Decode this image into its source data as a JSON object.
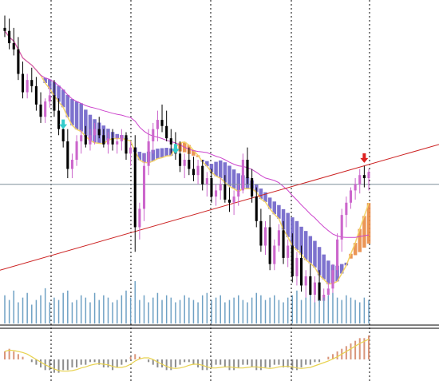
{
  "colors": {
    "background": "#ffffff",
    "grid": "#000000",
    "bull_candle": "#cc66cc",
    "bear_candle": "#000000",
    "cloud_bear": "#6f63c9",
    "cloud_bull": "#e98a44",
    "cloud_edge": "#f3d36a",
    "slow_ma": "#cc44cc",
    "trendline": "#cc2222",
    "hline": "#7f8f9a",
    "volume": "#6fa1c4",
    "osc_pos": "#d9957a",
    "osc_neg": "#8d8d8d",
    "osc_signal": "#e8d24f",
    "osc_green": "#6fbf3f",
    "arrow_cyan": "#33cccc",
    "arrow_red": "#dd2222"
  },
  "chart_data": [
    {
      "type": "candlestick",
      "title": "",
      "xlabel": "",
      "ylabel": "",
      "ylim": [
        0,
        100
      ],
      "grid": "vertical dashed",
      "legend": "none",
      "ohlc": [
        [
          93,
          97,
          90,
          92
        ],
        [
          92,
          96,
          86,
          88
        ],
        [
          88,
          93,
          84,
          86
        ],
        [
          86,
          90,
          76,
          78
        ],
        [
          78,
          82,
          70,
          72
        ],
        [
          72,
          78,
          70,
          76
        ],
        [
          76,
          80,
          72,
          74
        ],
        [
          74,
          77,
          66,
          68
        ],
        [
          68,
          72,
          62,
          64
        ],
        [
          64,
          70,
          62,
          69
        ],
        [
          69,
          74,
          67,
          71
        ],
        [
          71,
          76,
          64,
          66
        ],
        [
          66,
          70,
          58,
          60
        ],
        [
          60,
          63,
          54,
          56
        ],
        [
          56,
          60,
          44,
          47
        ],
        [
          47,
          52,
          44,
          50
        ],
        [
          50,
          58,
          48,
          56
        ],
        [
          56,
          60,
          52,
          58
        ],
        [
          58,
          61,
          54,
          55
        ],
        [
          55,
          60,
          53,
          58
        ],
        [
          58,
          62,
          55,
          60
        ],
        [
          60,
          64,
          57,
          58
        ],
        [
          58,
          60,
          54,
          55
        ],
        [
          55,
          59,
          52,
          57
        ],
        [
          57,
          60,
          53,
          55
        ],
        [
          55,
          58,
          52,
          56
        ],
        [
          56,
          60,
          53,
          58
        ],
        [
          58,
          59,
          50,
          52
        ],
        [
          52,
          56,
          48,
          54
        ],
        [
          54,
          58,
          20,
          28
        ],
        [
          28,
          36,
          24,
          34
        ],
        [
          34,
          52,
          30,
          48
        ],
        [
          48,
          60,
          45,
          56
        ],
        [
          56,
          62,
          52,
          60
        ],
        [
          60,
          66,
          56,
          63
        ],
        [
          63,
          68,
          59,
          61
        ],
        [
          61,
          66,
          56,
          57
        ],
        [
          57,
          60,
          52,
          55
        ],
        [
          55,
          59,
          50,
          52
        ],
        [
          52,
          56,
          46,
          48
        ],
        [
          48,
          52,
          44,
          50
        ],
        [
          50,
          54,
          45,
          47
        ],
        [
          47,
          51,
          43,
          45
        ],
        [
          45,
          50,
          42,
          48
        ],
        [
          48,
          50,
          40,
          42
        ],
        [
          42,
          46,
          38,
          44
        ],
        [
          44,
          47,
          36,
          38
        ],
        [
          38,
          42,
          35,
          40
        ],
        [
          40,
          44,
          37,
          42
        ],
        [
          42,
          45,
          36,
          37
        ],
        [
          37,
          41,
          33,
          36
        ],
        [
          36,
          40,
          32,
          38
        ],
        [
          38,
          42,
          35,
          40
        ],
        [
          40,
          52,
          39,
          50
        ],
        [
          50,
          54,
          42,
          44
        ],
        [
          44,
          47,
          36,
          38
        ],
        [
          38,
          41,
          28,
          30
        ],
        [
          30,
          34,
          20,
          22
        ],
        [
          22,
          30,
          19,
          28
        ],
        [
          28,
          32,
          14,
          16
        ],
        [
          16,
          24,
          14,
          22
        ],
        [
          22,
          29,
          20,
          27
        ],
        [
          27,
          30,
          16,
          18
        ],
        [
          18,
          24,
          15,
          22
        ],
        [
          22,
          26,
          10,
          12
        ],
        [
          12,
          20,
          9,
          18
        ],
        [
          18,
          22,
          7,
          9
        ],
        [
          9,
          14,
          5,
          12
        ],
        [
          12,
          16,
          4,
          6
        ],
        [
          6,
          12,
          3,
          10
        ],
        [
          10,
          14,
          2,
          4
        ],
        [
          4,
          8,
          1,
          6
        ],
        [
          6,
          10,
          2,
          8
        ],
        [
          8,
          16,
          6,
          14
        ],
        [
          14,
          26,
          12,
          24
        ],
        [
          24,
          34,
          20,
          32
        ],
        [
          32,
          38,
          28,
          36
        ],
        [
          36,
          41,
          34,
          40
        ],
        [
          40,
          44,
          37,
          42
        ],
        [
          42,
          47,
          39,
          45
        ],
        [
          45,
          48,
          41,
          44
        ],
        [
          44,
          47,
          40,
          46
        ]
      ],
      "volume": [
        12,
        10,
        14,
        9,
        11,
        13,
        8,
        10,
        12,
        15,
        9,
        11,
        10,
        13,
        14,
        9,
        10,
        12,
        11,
        9,
        13,
        10,
        12,
        11,
        9,
        10,
        12,
        14,
        11,
        18,
        10,
        12,
        9,
        11,
        13,
        10,
        12,
        11,
        9,
        10,
        12,
        11,
        10,
        9,
        12,
        13,
        10,
        11,
        12,
        9,
        10,
        11,
        12,
        10,
        9,
        11,
        13,
        12,
        10,
        11,
        12,
        10,
        9,
        11,
        12,
        14,
        10,
        11,
        12,
        9,
        10,
        11,
        12,
        13,
        11,
        10,
        12,
        11,
        10,
        9,
        11,
        10
      ],
      "oscillator": [
        3,
        4,
        3,
        2,
        1,
        0,
        -1,
        -2,
        -3,
        -4,
        -4,
        -5,
        -5,
        -4,
        -4,
        -3,
        -3,
        -2,
        -2,
        -1,
        -1,
        -2,
        -3,
        -3,
        -4,
        -3,
        -2,
        -1,
        1,
        2,
        1,
        0,
        -1,
        -2,
        -3,
        -3,
        -4,
        -4,
        -3,
        -2,
        -1,
        -1,
        -2,
        -3,
        -4,
        -4,
        -3,
        -2,
        -2,
        -3,
        -4,
        -4,
        -3,
        -2,
        -2,
        -3,
        -4,
        -4,
        -3,
        -3,
        -2,
        -2,
        -3,
        -3,
        -4,
        -4,
        -3,
        -2,
        -2,
        -1,
        -1,
        0,
        1,
        2,
        3,
        4,
        5,
        6,
        7,
        8,
        8,
        9
      ]
    }
  ]
}
